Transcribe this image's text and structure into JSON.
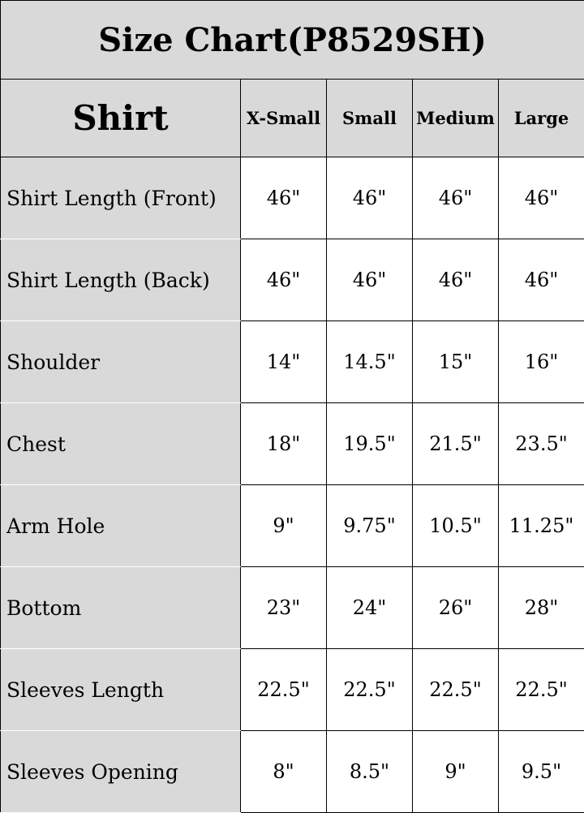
{
  "title": "Size Chart(P8529SH)",
  "header": {
    "section": "Shirt",
    "sizes": [
      "X-Small",
      "Small",
      "Medium",
      "Large"
    ]
  },
  "rows": [
    {
      "label": "Shirt Length (Front)",
      "values": [
        "46\"",
        "46\"",
        "46\"",
        "46\""
      ]
    },
    {
      "label": "Shirt Length (Back)",
      "values": [
        "46\"",
        "46\"",
        "46\"",
        "46\""
      ]
    },
    {
      "label": "Shoulder",
      "values": [
        "14\"",
        "14.5\"",
        "15\"",
        "16\""
      ]
    },
    {
      "label": "Chest",
      "values": [
        "18\"",
        "19.5\"",
        "21.5\"",
        "23.5\""
      ]
    },
    {
      "label": "Arm Hole",
      "values": [
        "9\"",
        "9.75\"",
        "10.5\"",
        "11.25\""
      ]
    },
    {
      "label": "Bottom",
      "values": [
        "23\"",
        "24\"",
        "26\"",
        "28\""
      ]
    },
    {
      "label": "Sleeves Length",
      "values": [
        "22.5\"",
        "22.5\"",
        "22.5\"",
        "22.5\""
      ]
    },
    {
      "label": "Sleeves Opening",
      "values": [
        "8\"",
        "8.5\"",
        "9\"",
        "9.5\""
      ]
    }
  ],
  "colors": {
    "header_bg": "#d9d9d9",
    "border": "#000000"
  }
}
